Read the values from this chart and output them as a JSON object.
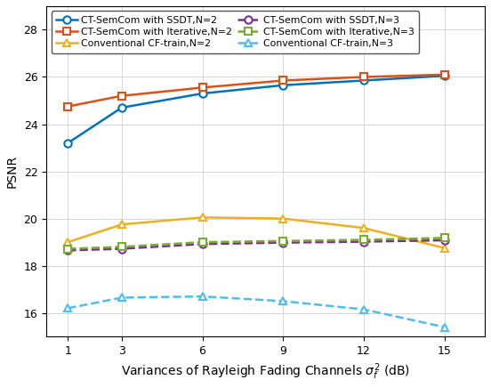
{
  "x": [
    1,
    3,
    6,
    9,
    12,
    15
  ],
  "series": [
    {
      "label": "CT-SemCom with SSDT,N=2",
      "y": [
        23.2,
        24.7,
        25.3,
        25.65,
        25.85,
        26.05
      ],
      "color": "#0072BD",
      "linestyle": "-",
      "marker": "o",
      "linewidth": 1.8,
      "markersize": 6
    },
    {
      "label": "CT-SemCom with Iterative,N=2",
      "y": [
        24.75,
        25.2,
        25.55,
        25.85,
        26.0,
        26.1
      ],
      "color": "#D95319",
      "linestyle": "-",
      "marker": "s",
      "linewidth": 1.8,
      "markersize": 6
    },
    {
      "label": "Conventional CF-train,N=2",
      "y": [
        19.0,
        19.75,
        20.05,
        20.0,
        19.6,
        18.75
      ],
      "color": "#EDB120",
      "linestyle": "-",
      "marker": "^",
      "linewidth": 1.8,
      "markersize": 6
    },
    {
      "label": "CT-SemCom with SSDT,N=3",
      "y": [
        18.65,
        18.72,
        18.92,
        18.98,
        19.02,
        19.08
      ],
      "color": "#7E2F8E",
      "linestyle": "--",
      "marker": "o",
      "linewidth": 1.8,
      "markersize": 6
    },
    {
      "label": "CT-SemCom with Iterative,N=3",
      "y": [
        18.72,
        18.8,
        19.0,
        19.05,
        19.1,
        19.18
      ],
      "color": "#77AC30",
      "linestyle": "--",
      "marker": "s",
      "linewidth": 1.8,
      "markersize": 6
    },
    {
      "label": "Conventional CF-train,N=3",
      "y": [
        16.2,
        16.65,
        16.7,
        16.5,
        16.15,
        15.4
      ],
      "color": "#4DBEEE",
      "linestyle": "--",
      "marker": "^",
      "linewidth": 1.8,
      "markersize": 6
    }
  ],
  "xlabel": "Variances of Rayleigh Fading Channels $\\sigma_f^2$ (dB)",
  "ylabel": "PSNR",
  "xlim": [
    0.2,
    16.5
  ],
  "ylim": [
    15,
    29
  ],
  "xticks": [
    1,
    3,
    6,
    9,
    12,
    15
  ],
  "yticks": [
    16,
    18,
    20,
    22,
    24,
    26,
    28
  ],
  "grid": true,
  "legend_ncol": 2,
  "legend_fontsize": 7.8,
  "axis_fontsize": 10,
  "tick_fontsize": 9
}
